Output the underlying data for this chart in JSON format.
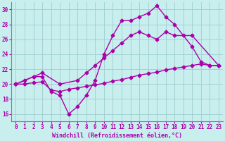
{
  "xlabel": "Windchill (Refroidissement éolien,°C)",
  "bg_color": "#c8eeee",
  "grid_color": "#9ecece",
  "line_color": "#aa00aa",
  "xlim_min": -0.5,
  "xlim_max": 23.5,
  "ylim_min": 15,
  "ylim_max": 31,
  "xticks": [
    0,
    1,
    2,
    3,
    4,
    5,
    6,
    7,
    8,
    9,
    10,
    11,
    12,
    13,
    14,
    15,
    16,
    17,
    18,
    19,
    20,
    21,
    22,
    23
  ],
  "yticks": [
    16,
    18,
    20,
    22,
    24,
    26,
    28,
    30
  ],
  "line1_x": [
    0,
    1,
    2,
    3,
    4,
    5,
    6,
    7,
    8,
    9,
    10,
    11,
    12,
    13,
    14,
    15,
    16,
    17,
    18,
    19,
    20,
    21,
    22,
    23
  ],
  "line1_y": [
    20.0,
    20.0,
    20.2,
    20.3,
    19.2,
    19.0,
    19.3,
    19.5,
    19.7,
    19.9,
    20.1,
    20.4,
    20.6,
    20.9,
    21.2,
    21.4,
    21.6,
    21.9,
    22.1,
    22.3,
    22.5,
    22.7,
    22.5,
    22.5
  ],
  "line2_x": [
    0,
    2,
    3,
    5,
    7,
    8,
    9,
    10,
    11,
    12,
    13,
    14,
    15,
    16,
    17,
    18,
    20,
    23
  ],
  "line2_y": [
    20.0,
    21.0,
    21.5,
    20.0,
    20.5,
    21.5,
    22.5,
    23.5,
    24.5,
    25.5,
    26.5,
    27.0,
    26.5,
    26.0,
    27.0,
    26.5,
    26.5,
    22.5
  ],
  "line3_x": [
    0,
    1,
    2,
    3,
    4,
    5,
    6,
    7,
    8,
    9,
    10,
    11,
    12,
    13,
    14,
    15,
    16,
    17,
    18,
    19,
    20,
    21,
    22,
    23
  ],
  "line3_y": [
    20.0,
    20.5,
    21.0,
    21.0,
    19.0,
    18.5,
    16.0,
    17.0,
    18.5,
    20.5,
    24.0,
    26.5,
    28.5,
    28.5,
    29.0,
    29.5,
    30.5,
    29.0,
    28.0,
    26.5,
    25.0,
    23.0,
    22.5,
    22.5
  ],
  "marker": "D",
  "markersize": 2.5,
  "linewidth": 1.0,
  "xlabel_fontsize": 6.0,
  "tick_fontsize": 5.5
}
